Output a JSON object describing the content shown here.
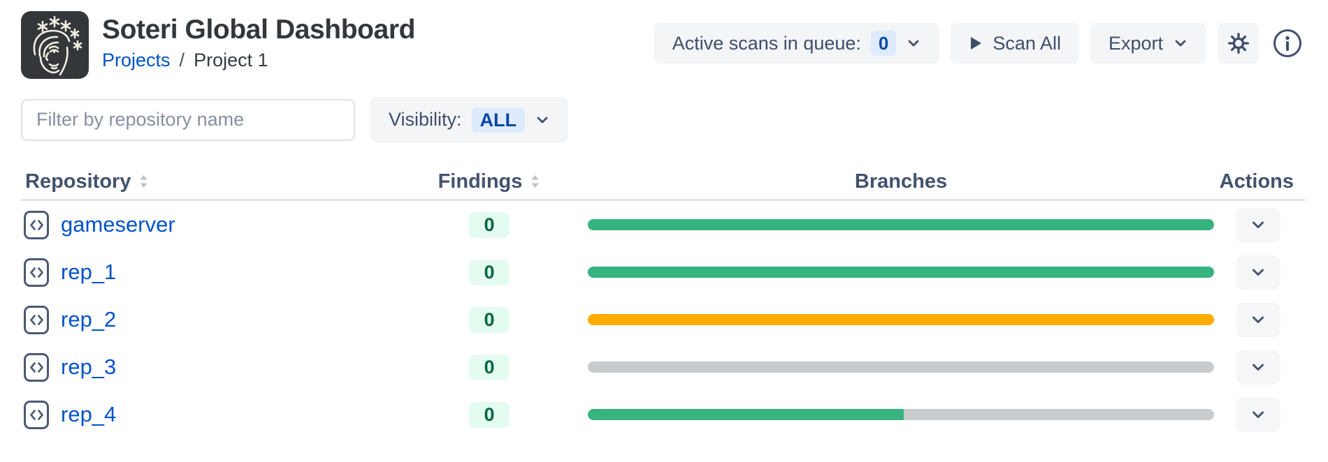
{
  "app": {
    "title": "Soteri Global Dashboard"
  },
  "breadcrumb": {
    "link": "Projects",
    "separator": "/",
    "current": "Project 1"
  },
  "toolbar": {
    "active_scans_label": "Active scans in queue:",
    "active_scans_count": "0",
    "scan_all_label": "Scan All",
    "export_label": "Export",
    "icons": {
      "logo": "soteri-face-logo",
      "scan": "play-icon",
      "dropdown": "chevron-down-icon",
      "settings": "gear-icon",
      "info": "info-icon"
    }
  },
  "filters": {
    "repo_filter_placeholder": "Filter by repository name",
    "visibility_label": "Visibility:",
    "visibility_value": "ALL"
  },
  "table": {
    "headers": {
      "repository": "Repository",
      "findings": "Findings",
      "branches": "Branches",
      "actions": "Actions"
    },
    "rows": [
      {
        "name": "gameserver",
        "findings": "0",
        "branch_segments": [
          {
            "status": "scanned_clean",
            "fraction": 1
          }
        ]
      },
      {
        "name": "rep_1",
        "findings": "0",
        "branch_segments": [
          {
            "status": "scanned_clean",
            "fraction": 1
          }
        ]
      },
      {
        "name": "rep_2",
        "findings": "0",
        "branch_segments": [
          {
            "status": "warning",
            "fraction": 1
          }
        ]
      },
      {
        "name": "rep_3",
        "findings": "0",
        "branch_segments": [
          {
            "status": "not_scanned",
            "fraction": 1
          }
        ]
      },
      {
        "name": "rep_4",
        "findings": "0",
        "branch_segments": [
          {
            "status": "scanned_clean",
            "fraction": 0.505
          },
          {
            "status": "not_scanned",
            "fraction": 0.495
          }
        ]
      }
    ]
  },
  "colors": {
    "link_blue": "#0052CC",
    "badge_blue_bg": "#DEEBFF",
    "badge_blue_text": "#0747A6",
    "badge_green_bg": "#E3FCEF",
    "badge_green_text": "#006644",
    "bar_scanned_clean": "#36B37E",
    "bar_warning": "#FFAB00",
    "bar_not_scanned": "#C9CBCD",
    "slate_text": "#42526E",
    "logo_bg": "#33373A"
  }
}
